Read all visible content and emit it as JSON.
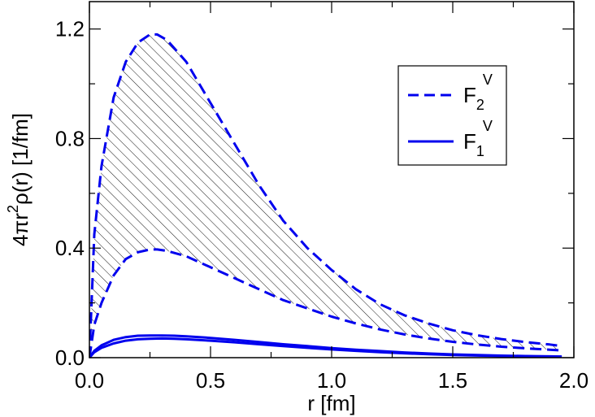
{
  "chart_data": {
    "type": "line",
    "title": "",
    "xlabel": "r [fm]",
    "ylabel_parts": [
      "4πr",
      "2",
      "ρ(r) [1/fm]"
    ],
    "xlim": [
      0.0,
      2.0
    ],
    "ylim": [
      0.0,
      1.3
    ],
    "xticks": [
      0.0,
      0.5,
      1.0,
      1.5,
      2.0
    ],
    "xtick_labels": [
      "0.0",
      "0.5",
      "1.0",
      "1.5",
      "2.0"
    ],
    "yticks": [
      0.0,
      0.4,
      0.8,
      1.2
    ],
    "ytick_labels": [
      "0.0",
      "0.4",
      "0.8",
      "1.2"
    ],
    "grid": false,
    "legend_placement": "top-right",
    "colors": {
      "series": "#0000ee",
      "band_hatch": "#000000"
    },
    "legend": [
      {
        "main": "F",
        "sub": "2",
        "sup": "V",
        "style": "dashed"
      },
      {
        "main": "F",
        "sub": "1",
        "sup": "V",
        "style": "solid"
      }
    ],
    "series": [
      {
        "name": "F2V",
        "style": "dashed",
        "band": true,
        "x": [
          0.0,
          0.02,
          0.05,
          0.1,
          0.15,
          0.2,
          0.25,
          0.28,
          0.32,
          0.4,
          0.5,
          0.6,
          0.7,
          0.8,
          0.9,
          1.0,
          1.1,
          1.2,
          1.3,
          1.4,
          1.5,
          1.6,
          1.7,
          1.8,
          1.9,
          1.95
        ],
        "upper": [
          0.0,
          0.45,
          0.7,
          0.95,
          1.08,
          1.15,
          1.18,
          1.18,
          1.16,
          1.08,
          0.93,
          0.78,
          0.63,
          0.5,
          0.4,
          0.32,
          0.25,
          0.195,
          0.155,
          0.125,
          0.1,
          0.082,
          0.068,
          0.057,
          0.048,
          0.042
        ],
        "lower": [
          0.0,
          0.12,
          0.2,
          0.3,
          0.36,
          0.385,
          0.395,
          0.395,
          0.39,
          0.37,
          0.33,
          0.29,
          0.25,
          0.21,
          0.18,
          0.15,
          0.125,
          0.103,
          0.085,
          0.07,
          0.058,
          0.048,
          0.04,
          0.034,
          0.029,
          0.026
        ]
      },
      {
        "name": "F1V",
        "style": "solid",
        "band": true,
        "x": [
          0.0,
          0.02,
          0.05,
          0.1,
          0.15,
          0.2,
          0.25,
          0.3,
          0.35,
          0.4,
          0.5,
          0.6,
          0.7,
          0.8,
          0.9,
          1.0,
          1.1,
          1.2,
          1.3,
          1.4,
          1.5,
          1.6,
          1.7,
          1.8,
          1.9,
          1.95
        ],
        "upper": [
          0.0,
          0.025,
          0.045,
          0.065,
          0.075,
          0.08,
          0.081,
          0.081,
          0.08,
          0.078,
          0.072,
          0.065,
          0.057,
          0.049,
          0.042,
          0.035,
          0.029,
          0.024,
          0.019,
          0.015,
          0.012,
          0.0095,
          0.0075,
          0.006,
          0.0048,
          0.0043
        ],
        "lower": [
          0.0,
          0.02,
          0.036,
          0.052,
          0.062,
          0.067,
          0.069,
          0.07,
          0.069,
          0.067,
          0.062,
          0.056,
          0.049,
          0.042,
          0.036,
          0.03,
          0.025,
          0.02,
          0.016,
          0.0125,
          0.0098,
          0.0077,
          0.006,
          0.0047,
          0.0037,
          0.0033
        ]
      }
    ]
  }
}
